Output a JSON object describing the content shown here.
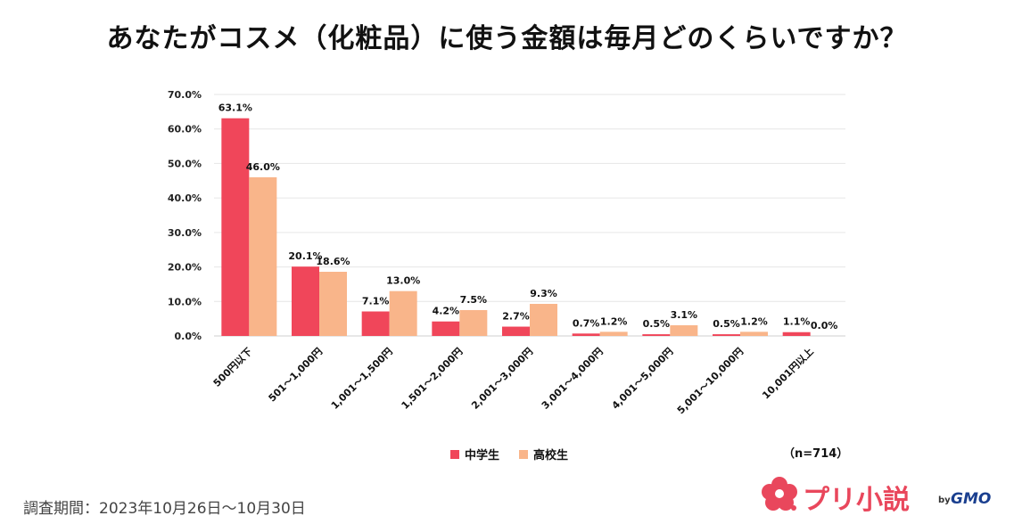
{
  "title": "あなたがコスメ（化粧品）に使う金額は毎月どのくらいですか？",
  "note": "（n=714）",
  "period": "調査期間：2023年10月26日～10月30日",
  "logo": {
    "text": "プリ小説",
    "by": "by",
    "brand": "GMO",
    "icon": "flower-logo-icon"
  },
  "colors": {
    "series1": "#f0465a",
    "series2": "#f9b58a",
    "grid": "#e6e6e6"
  },
  "chart_data": {
    "type": "bar",
    "categories": [
      "500円以下",
      "501～1,000円",
      "1,001～1,500円",
      "1,501～2,000円",
      "2,001～3,000円",
      "3,001～4,000円",
      "4,001～5,000円",
      "5,001～10,000円",
      "10,001円以上"
    ],
    "series": [
      {
        "name": "中学生",
        "values": [
          63.1,
          20.1,
          7.1,
          4.2,
          2.7,
          0.7,
          0.5,
          0.5,
          1.1
        ],
        "labels": [
          "63.1%",
          "20.1%",
          "7.1%",
          "4.2%",
          "2.7%",
          "0.7%",
          "0.5%",
          "0.5%",
          "1.1%"
        ]
      },
      {
        "name": "高校生",
        "values": [
          46.0,
          18.6,
          13.0,
          7.5,
          9.3,
          1.2,
          3.1,
          1.2,
          0.0
        ],
        "labels": [
          "46.0%",
          "18.6%",
          "13.0%",
          "7.5%",
          "9.3%",
          "1.2%",
          "3.1%",
          "1.2%",
          "0.0%"
        ]
      }
    ],
    "yticks": [
      "0.0%",
      "10.0%",
      "20.0%",
      "30.0%",
      "40.0%",
      "50.0%",
      "60.0%",
      "70.0%"
    ],
    "ylim": [
      0,
      70
    ],
    "grid": true,
    "legend_position": "bottom"
  }
}
